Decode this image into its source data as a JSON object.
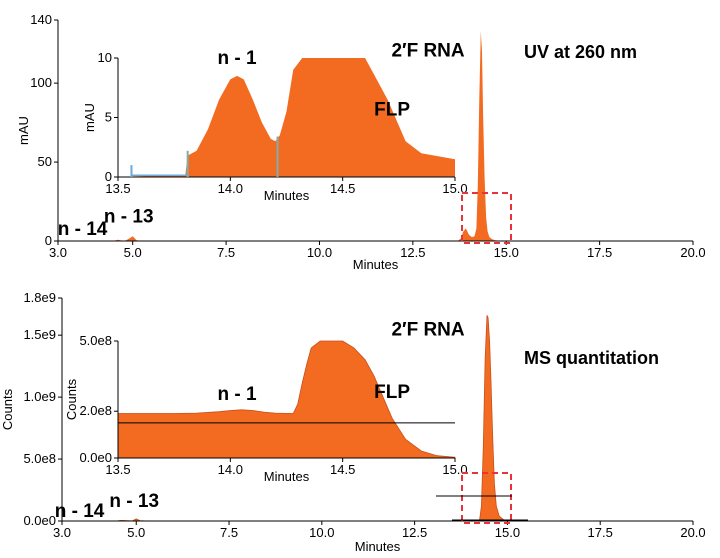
{
  "colors": {
    "fill": "#f26b21",
    "edge": "#c9501a",
    "highlight": "#e8333a",
    "axis": "#000000",
    "inset_tick": "#6ea9d8"
  },
  "chart_data": [
    {
      "type": "area",
      "name": "uv-main",
      "ylabel": "mAU",
      "xlabel": "Minutes",
      "xlim": [
        3.0,
        20.0
      ],
      "ylim": [
        0,
        140
      ],
      "xticks": [
        "3.0",
        "5.0",
        "7.5",
        "10.0",
        "12.5",
        "15.0",
        "17.5",
        "20.0"
      ],
      "yticks": [
        "0",
        "50",
        "100",
        "140"
      ],
      "x": [
        3.0,
        4.4,
        4.5,
        4.6,
        4.7,
        4.8,
        4.9,
        5.0,
        5.1,
        5.2,
        13.7,
        13.78,
        13.85,
        13.92,
        14.0,
        14.08,
        14.15,
        14.2,
        14.24,
        14.28,
        14.32,
        14.35,
        14.38,
        14.42,
        14.46,
        14.5,
        14.55,
        14.62,
        14.7,
        14.85,
        15.0,
        20.0
      ],
      "y": [
        0,
        0,
        0.2,
        0.8,
        0.3,
        0.2,
        1.5,
        3.0,
        0.6,
        0,
        0,
        1.5,
        6.0,
        8.0,
        4.0,
        2.5,
        3.0,
        8.0,
        35,
        90,
        133,
        120,
        80,
        40,
        15,
        6,
        2.5,
        1.2,
        0.5,
        0.2,
        0,
        0
      ],
      "label": "UV at 260 nm",
      "annotations": [
        {
          "text": "n - 14",
          "x": 4.3,
          "y": 0
        },
        {
          "text": "n - 13",
          "x": 5.0,
          "y": 3
        }
      ]
    },
    {
      "type": "area",
      "name": "uv-inset",
      "ylabel": "mAU",
      "xlabel": "Minutes",
      "xlim": [
        13.5,
        15.0
      ],
      "ylim": [
        0,
        10
      ],
      "xticks": [
        "13.5",
        "14.0",
        "14.5",
        "15.0"
      ],
      "yticks": [
        "0",
        "5",
        "10"
      ],
      "x": [
        13.5,
        13.8,
        13.81,
        13.85,
        13.9,
        13.95,
        14.0,
        14.03,
        14.06,
        14.1,
        14.14,
        14.18,
        14.2,
        14.22,
        14.25,
        14.28,
        14.32,
        14.38,
        14.6,
        14.7,
        14.78,
        14.85,
        15.0
      ],
      "y": [
        0,
        0.2,
        1.8,
        2.2,
        4.0,
        6.5,
        8.2,
        8.5,
        8.2,
        6.5,
        4.6,
        3.2,
        3.0,
        3.5,
        5.5,
        9.0,
        10.0,
        10.0,
        10.0,
        6.5,
        3.0,
        2.0,
        1.5
      ],
      "annotations": [
        {
          "text": "n - 1",
          "x": 14.03,
          "y": 8.5
        },
        {
          "text": "2′F RNA",
          "x": 14.88,
          "y": 8.6
        },
        {
          "text": "FLP",
          "x": 14.72,
          "y": 6.0
        }
      ]
    },
    {
      "type": "area",
      "name": "ms-main",
      "ylabel": "Counts",
      "xlabel": "Minutes",
      "xlim": [
        3.0,
        20.0
      ],
      "ylim": [
        0,
        1800000000
      ],
      "xticks": [
        "3.0",
        "5.0",
        "7.5",
        "10.0",
        "12.5",
        "15.0",
        "17.5",
        "20.0"
      ],
      "yticks": [
        "0.0e0",
        "5.0e8",
        "1.0e9",
        "1.5e9",
        "1.8e9"
      ],
      "x": [
        3.0,
        4.35,
        4.5,
        4.6,
        4.75,
        4.9,
        5.0,
        5.1,
        5.25,
        5.4,
        14.0,
        14.1,
        14.2,
        14.25,
        14.3,
        14.35,
        14.4,
        14.45,
        14.48,
        14.52,
        14.56,
        14.6,
        14.65,
        14.7,
        14.78,
        14.9,
        15.0,
        20.0
      ],
      "y": [
        0,
        0,
        2000000,
        5000000,
        3000000,
        1000000,
        18000000,
        3000000,
        1000000,
        0,
        0,
        2000000,
        4000000,
        10000000,
        120000000,
        600000000,
        1300000000,
        1660000000,
        1640000000,
        1450000000,
        1100000000,
        700000000,
        300000000,
        120000000,
        40000000,
        10000000,
        0,
        0
      ],
      "label": "MS quantitation",
      "annotations": [
        {
          "text": "n - 14",
          "x": 4.2,
          "y": 0
        },
        {
          "text": "n - 13",
          "x": 5.0,
          "y": 18000000
        }
      ]
    },
    {
      "type": "area",
      "name": "ms-inset",
      "ylabel": "Counts",
      "xlabel": "Minutes",
      "xlim": [
        13.5,
        15.0
      ],
      "ylim": [
        0,
        500000000
      ],
      "xticks": [
        "13.5",
        "14.0",
        "14.5",
        "15.0"
      ],
      "yticks": [
        "0.0e0",
        "2.0e8",
        "5.0e8"
      ],
      "x": [
        13.5,
        13.75,
        13.85,
        13.95,
        14.0,
        14.05,
        14.1,
        14.15,
        14.2,
        14.28,
        14.3,
        14.32,
        14.34,
        14.36,
        14.4,
        14.5,
        14.55,
        14.6,
        14.64,
        14.68,
        14.72,
        14.78,
        14.85,
        14.92,
        15.0
      ],
      "y": [
        190000000,
        190000000,
        192000000,
        198000000,
        203000000,
        206000000,
        203000000,
        196000000,
        192000000,
        190000000,
        230000000,
        320000000,
        400000000,
        470000000,
        500000000,
        500000000,
        470000000,
        420000000,
        350000000,
        260000000,
        170000000,
        80000000,
        30000000,
        10000000,
        3000000
      ],
      "annotations": [
        {
          "text": "n - 1",
          "x": 14.03,
          "y": 206000000
        },
        {
          "text": "2′F RNA",
          "x": 14.88,
          "y": 420000000
        },
        {
          "text": "FLP",
          "x": 14.72,
          "y": 300000000
        }
      ]
    }
  ]
}
